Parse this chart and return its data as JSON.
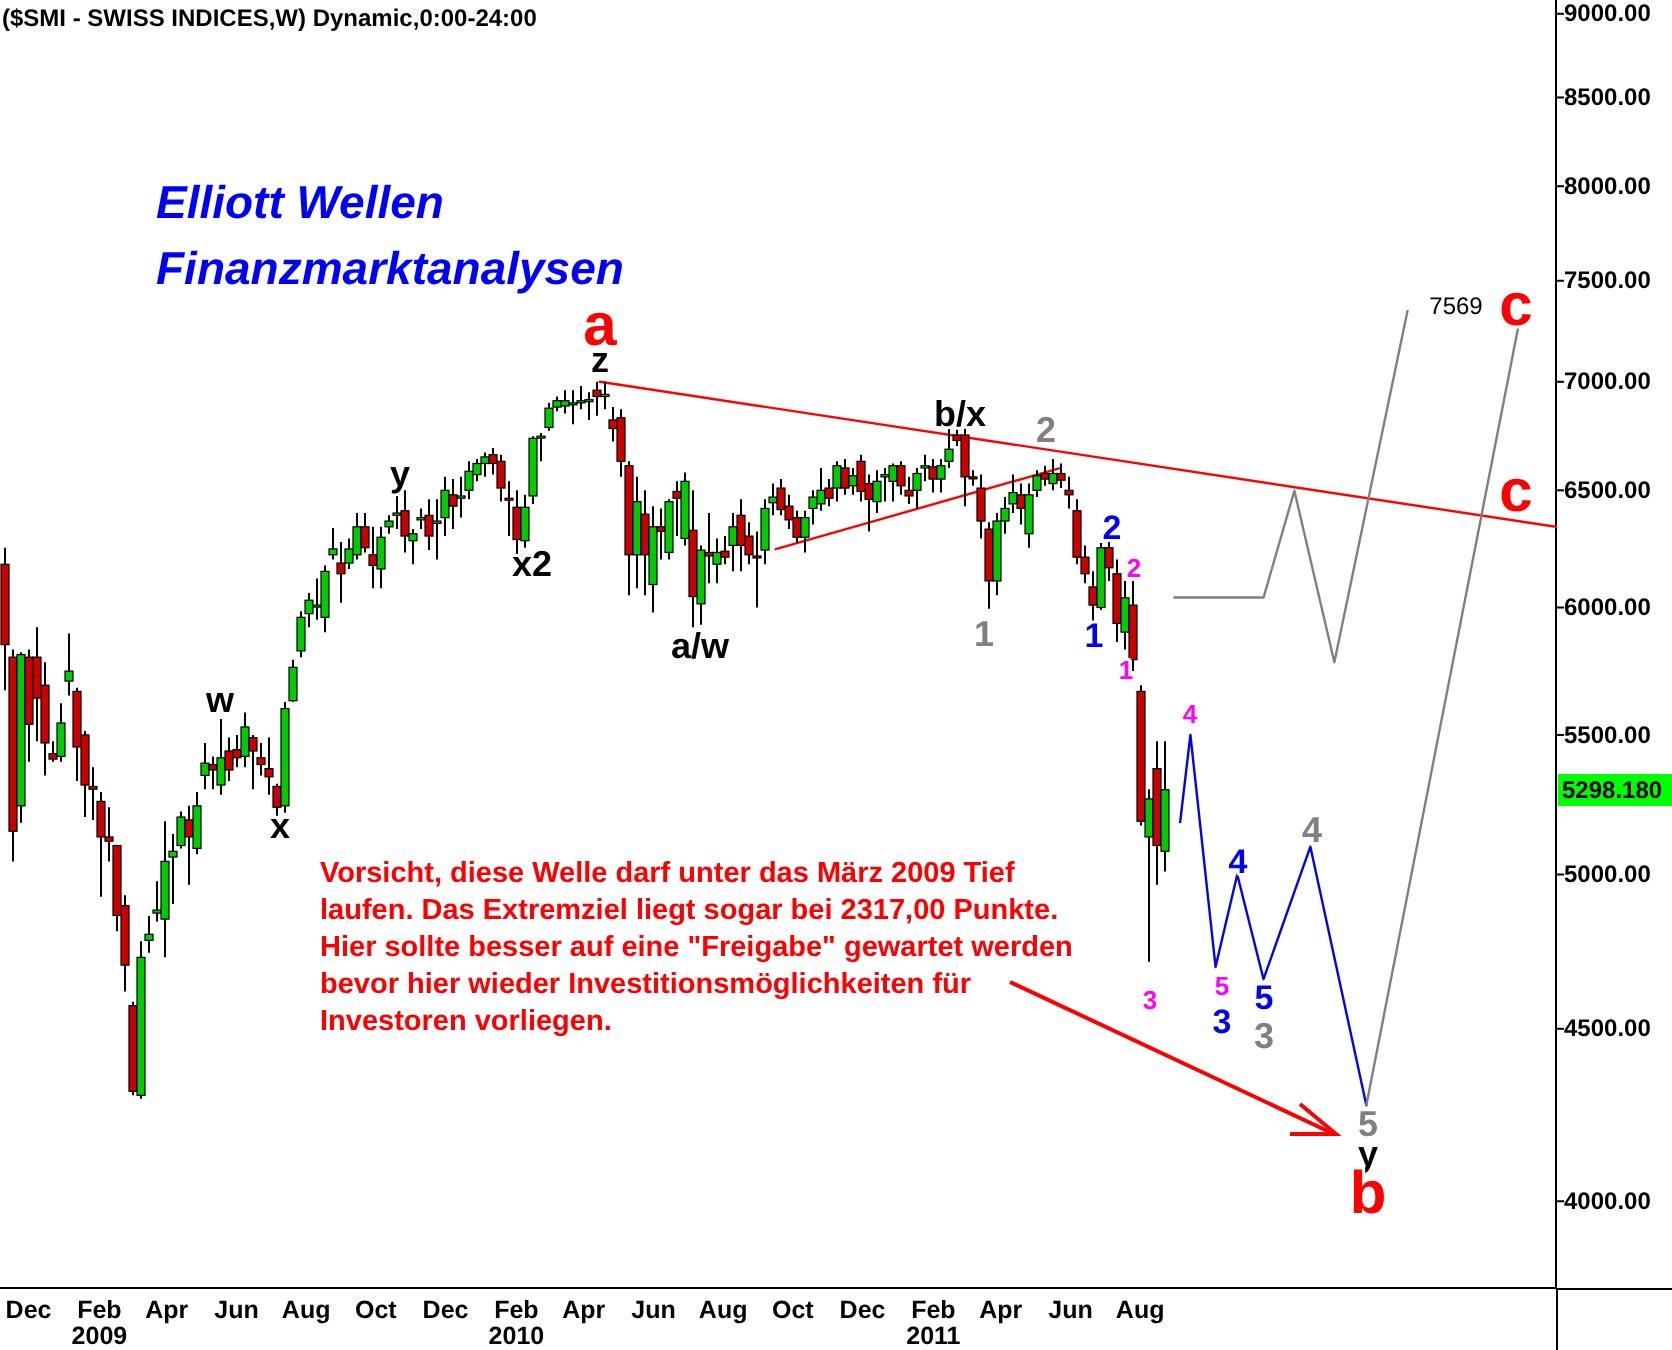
{
  "chart_data": {
    "type": "candlestick",
    "title": "($SMI - SWISS INDICES,W) Dynamic,0:00-24:00",
    "subtitle": "Elliott Wellen\nFinanzmarktanalysen",
    "log": true,
    "xlim": [
      "2008-11-06",
      "2012-07-30"
    ],
    "xticks": [
      {
        "value": "2008-12-01",
        "label": "Dec"
      },
      {
        "value": "2009-02-01",
        "label": "Feb\n2009"
      },
      {
        "value": "2009-04-01",
        "label": "Apr"
      },
      {
        "value": "2009-06-01",
        "label": "Jun"
      },
      {
        "value": "2009-08-01",
        "label": "Aug"
      },
      {
        "value": "2009-10-01",
        "label": "Oct"
      },
      {
        "value": "2009-12-01",
        "label": "Dec"
      },
      {
        "value": "2010-02-01",
        "label": "Feb\n2010"
      },
      {
        "value": "2010-04-01",
        "label": "Apr"
      },
      {
        "value": "2010-06-01",
        "label": "Jun"
      },
      {
        "value": "2010-08-01",
        "label": "Aug"
      },
      {
        "value": "2010-10-01",
        "label": "Oct"
      },
      {
        "value": "2010-12-01",
        "label": "Dec"
      },
      {
        "value": "2011-02-01",
        "label": "Feb\n2011"
      },
      {
        "value": "2011-04-01",
        "label": "Apr"
      },
      {
        "value": "2011-06-01",
        "label": "Jun"
      },
      {
        "value": "2011-08-01",
        "label": "Aug"
      }
    ],
    "ylim": [
      3770,
      9085
    ],
    "yticks": [
      {
        "value": 4000,
        "label": "4000.00"
      },
      {
        "value": 4500,
        "label": "4500.00"
      },
      {
        "value": 5000,
        "label": "5000.00"
      },
      {
        "value": 5500,
        "label": "5500.00"
      },
      {
        "value": 6000,
        "label": "6000.00"
      },
      {
        "value": 6500,
        "label": "6500.00"
      },
      {
        "value": 7000,
        "label": "7000.00"
      },
      {
        "value": 7500,
        "label": "7500.00"
      },
      {
        "value": 8000,
        "label": "8000.00"
      },
      {
        "value": 8500,
        "label": "8500.00"
      },
      {
        "value": 9000,
        "label": "9000.00"
      }
    ],
    "x": [
      "2008-11-10",
      "2008-11-17",
      "2008-11-24",
      "2008-12-01",
      "2008-12-08",
      "2008-12-15",
      "2008-12-22",
      "2008-12-29",
      "2009-01-05",
      "2009-01-12",
      "2009-01-19",
      "2009-01-26",
      "2009-02-02",
      "2009-02-09",
      "2009-02-16",
      "2009-02-23",
      "2009-03-02",
      "2009-03-09",
      "2009-03-16",
      "2009-03-23",
      "2009-03-30",
      "2009-04-06",
      "2009-04-13",
      "2009-04-20",
      "2009-04-27",
      "2009-05-04",
      "2009-05-11",
      "2009-05-18",
      "2009-05-25",
      "2009-06-01",
      "2009-06-08",
      "2009-06-15",
      "2009-06-22",
      "2009-06-29",
      "2009-07-06",
      "2009-07-13",
      "2009-07-20",
      "2009-07-27",
      "2009-08-03",
      "2009-08-10",
      "2009-08-17",
      "2009-08-24",
      "2009-08-31",
      "2009-09-07",
      "2009-09-14",
      "2009-09-21",
      "2009-09-28",
      "2009-10-05",
      "2009-10-12",
      "2009-10-19",
      "2009-10-26",
      "2009-11-02",
      "2009-11-09",
      "2009-11-16",
      "2009-11-23",
      "2009-11-30",
      "2009-12-07",
      "2009-12-14",
      "2009-12-21",
      "2009-12-28",
      "2010-01-04",
      "2010-01-11",
      "2010-01-18",
      "2010-01-25",
      "2010-02-01",
      "2010-02-08",
      "2010-02-15",
      "2010-02-22",
      "2010-03-01",
      "2010-03-08",
      "2010-03-15",
      "2010-03-22",
      "2010-03-29",
      "2010-04-05",
      "2010-04-12",
      "2010-04-19",
      "2010-04-26",
      "2010-05-03",
      "2010-05-10",
      "2010-05-17",
      "2010-05-24",
      "2010-05-31",
      "2010-06-07",
      "2010-06-14",
      "2010-06-21",
      "2010-06-28",
      "2010-07-05",
      "2010-07-12",
      "2010-07-19",
      "2010-07-26",
      "2010-08-02",
      "2010-08-09",
      "2010-08-16",
      "2010-08-23",
      "2010-08-30",
      "2010-09-06",
      "2010-09-13",
      "2010-09-20",
      "2010-09-27",
      "2010-10-04",
      "2010-10-11",
      "2010-10-18",
      "2010-10-25",
      "2010-11-01",
      "2010-11-08",
      "2010-11-15",
      "2010-11-22",
      "2010-11-29",
      "2010-12-06",
      "2010-12-13",
      "2010-12-20",
      "2010-12-27",
      "2011-01-03",
      "2011-01-10",
      "2011-01-17",
      "2011-01-24",
      "2011-01-31",
      "2011-02-07",
      "2011-02-14",
      "2011-02-21",
      "2011-02-28",
      "2011-03-07",
      "2011-03-14",
      "2011-03-21",
      "2011-03-28",
      "2011-04-04",
      "2011-04-11",
      "2011-04-18",
      "2011-04-25",
      "2011-05-02",
      "2011-05-09",
      "2011-05-16",
      "2011-05-23",
      "2011-05-30",
      "2011-06-06",
      "2011-06-13",
      "2011-06-20",
      "2011-06-27",
      "2011-07-04",
      "2011-07-11",
      "2011-07-18",
      "2011-07-25",
      "2011-08-01",
      "2011-08-08",
      "2011-08-15",
      "2011-08-22"
    ],
    "ohlc": [
      [
        6180,
        6250,
        5670,
        5850
      ],
      [
        5800,
        5830,
        5045,
        5150
      ],
      [
        5240,
        5820,
        5180,
        5810
      ],
      [
        5800,
        5830,
        5400,
        5540
      ],
      [
        5800,
        5920,
        5476,
        5640
      ],
      [
        5690,
        5780,
        5350,
        5470
      ],
      [
        5430,
        5476,
        5400,
        5410
      ],
      [
        5420,
        5620,
        5400,
        5545
      ],
      [
        5706,
        5895,
        5650,
        5745
      ],
      [
        5666,
        5680,
        5330,
        5455
      ],
      [
        5500,
        5515,
        5200,
        5315
      ],
      [
        5310,
        5380,
        5190,
        5300
      ],
      [
        5256,
        5290,
        4925,
        5130
      ],
      [
        5130,
        5235,
        5045,
        5115
      ],
      [
        5100,
        5100,
        4810,
        4862
      ],
      [
        4895,
        4930,
        4616,
        4700
      ],
      [
        4572,
        4584,
        4300,
        4312
      ],
      [
        4300,
        4777,
        4290,
        4725
      ],
      [
        4780,
        4860,
        4740,
        4800
      ],
      [
        4870,
        4977,
        4842,
        4880
      ],
      [
        4850,
        5185,
        4725,
        5045
      ],
      [
        5060,
        5140,
        4900,
        5080
      ],
      [
        5100,
        5220,
        5090,
        5200
      ],
      [
        5190,
        5240,
        4965,
        5130
      ],
      [
        5090,
        5290,
        5070,
        5240
      ],
      [
        5350,
        5470,
        5300,
        5395
      ],
      [
        5390,
        5420,
        5300,
        5370
      ],
      [
        5315,
        5560,
        5280,
        5415
      ],
      [
        5440,
        5490,
        5330,
        5370
      ],
      [
        5445,
        5500,
        5380,
        5415
      ],
      [
        5420,
        5585,
        5380,
        5530
      ],
      [
        5490,
        5500,
        5300,
        5440
      ],
      [
        5415,
        5470,
        5350,
        5390
      ],
      [
        5375,
        5490,
        5280,
        5345
      ],
      [
        5310,
        5320,
        5205,
        5235
      ],
      [
        5240,
        5625,
        5215,
        5600
      ],
      [
        5630,
        5790,
        5625,
        5760
      ],
      [
        5825,
        5985,
        5800,
        5960
      ],
      [
        5975,
        6060,
        5920,
        6030
      ],
      [
        6005,
        6120,
        5950,
        6010
      ],
      [
        5960,
        6175,
        5900,
        6150
      ],
      [
        6220,
        6335,
        6200,
        6245
      ],
      [
        6185,
        6275,
        6020,
        6140
      ],
      [
        6185,
        6290,
        6160,
        6245
      ],
      [
        6220,
        6400,
        6200,
        6340
      ],
      [
        6340,
        6400,
        6230,
        6250
      ],
      [
        6220,
        6340,
        6080,
        6175
      ],
      [
        6160,
        6340,
        6080,
        6295
      ],
      [
        6340,
        6390,
        6310,
        6365
      ],
      [
        6390,
        6530,
        6330,
        6400
      ],
      [
        6410,
        6500,
        6230,
        6300
      ],
      [
        6280,
        6330,
        6180,
        6310
      ],
      [
        6370,
        6420,
        6330,
        6380
      ],
      [
        6390,
        6460,
        6240,
        6300
      ],
      [
        6355,
        6460,
        6200,
        6365
      ],
      [
        6380,
        6560,
        6300,
        6500
      ],
      [
        6480,
        6550,
        6330,
        6430
      ],
      [
        6465,
        6560,
        6380,
        6475
      ],
      [
        6500,
        6630,
        6460,
        6585
      ],
      [
        6570,
        6640,
        6540,
        6620
      ],
      [
        6620,
        6670,
        6560,
        6650
      ],
      [
        6660,
        6690,
        6570,
        6620
      ],
      [
        6630,
        6660,
        6450,
        6510
      ],
      [
        6465,
        6540,
        6300,
        6460
      ],
      [
        6425,
        6500,
        6220,
        6285
      ],
      [
        6280,
        6480,
        6250,
        6425
      ],
      [
        6475,
        6745,
        6440,
        6735
      ],
      [
        6740,
        6760,
        6630,
        6745
      ],
      [
        6785,
        6900,
        6770,
        6875
      ],
      [
        6880,
        6930,
        6860,
        6910
      ],
      [
        6885,
        6960,
        6850,
        6910
      ],
      [
        6895,
        6960,
        6800,
        6900
      ],
      [
        6900,
        6980,
        6870,
        6910
      ],
      [
        6910,
        6950,
        6820,
        6915
      ],
      [
        6960,
        7000,
        6840,
        6930
      ],
      [
        6930,
        7000,
        6870,
        6940
      ],
      [
        6820,
        6880,
        6720,
        6780
      ],
      [
        6830,
        6870,
        6560,
        6630
      ],
      [
        6610,
        6630,
        6050,
        6220
      ],
      [
        6220,
        6560,
        6080,
        6450
      ],
      [
        6395,
        6500,
        6050,
        6220
      ],
      [
        6095,
        6430,
        5980,
        6340
      ],
      [
        6340,
        6420,
        6200,
        6320
      ],
      [
        6230,
        6460,
        6200,
        6450
      ],
      [
        6495,
        6540,
        6300,
        6465
      ],
      [
        6290,
        6580,
        6260,
        6540
      ],
      [
        6325,
        6500,
        5920,
        6045
      ],
      [
        6015,
        6260,
        5930,
        6240
      ],
      [
        6230,
        6400,
        6100,
        6215
      ],
      [
        6180,
        6290,
        6100,
        6230
      ],
      [
        6235,
        6300,
        6180,
        6210
      ],
      [
        6260,
        6400,
        6150,
        6340
      ],
      [
        6390,
        6460,
        6150,
        6260
      ],
      [
        6300,
        6360,
        6180,
        6220
      ],
      [
        6215,
        6320,
        6000,
        6210
      ],
      [
        6240,
        6460,
        6180,
        6420
      ],
      [
        6445,
        6530,
        6390,
        6470
      ],
      [
        6510,
        6550,
        6390,
        6415
      ],
      [
        6430,
        6480,
        6330,
        6370
      ],
      [
        6380,
        6410,
        6270,
        6295
      ],
      [
        6295,
        6410,
        6230,
        6380
      ],
      [
        6420,
        6500,
        6350,
        6470
      ],
      [
        6440,
        6600,
        6410,
        6500
      ],
      [
        6510,
        6550,
        6430,
        6465
      ],
      [
        6510,
        6630,
        6450,
        6610
      ],
      [
        6600,
        6640,
        6480,
        6510
      ],
      [
        6520,
        6600,
        6480,
        6565
      ],
      [
        6630,
        6660,
        6450,
        6495
      ],
      [
        6530,
        6570,
        6320,
        6460
      ],
      [
        6450,
        6590,
        6400,
        6540
      ],
      [
        6560,
        6600,
        6450,
        6570
      ],
      [
        6540,
        6620,
        6450,
        6610
      ],
      [
        6610,
        6630,
        6480,
        6520
      ],
      [
        6500,
        6560,
        6440,
        6475
      ],
      [
        6500,
        6600,
        6420,
        6575
      ],
      [
        6600,
        6660,
        6540,
        6610
      ],
      [
        6605,
        6640,
        6490,
        6550
      ],
      [
        6550,
        6640,
        6490,
        6610
      ],
      [
        6630,
        6790,
        6600,
        6685
      ],
      [
        6750,
        6790,
        6700,
        6725
      ],
      [
        6750,
        6780,
        6430,
        6560
      ],
      [
        6560,
        6590,
        6520,
        6555
      ],
      [
        6510,
        6570,
        6290,
        6365
      ],
      [
        6330,
        6360,
        5995,
        6110
      ],
      [
        6110,
        6400,
        6050,
        6365
      ],
      [
        6365,
        6470,
        6310,
        6420
      ],
      [
        6440,
        6570,
        6400,
        6490
      ],
      [
        6480,
        6530,
        6350,
        6420
      ],
      [
        6310,
        6530,
        6250,
        6480
      ],
      [
        6500,
        6590,
        6470,
        6565
      ],
      [
        6575,
        6610,
        6520,
        6550
      ],
      [
        6530,
        6640,
        6500,
        6575
      ],
      [
        6575,
        6620,
        6510,
        6545
      ],
      [
        6500,
        6560,
        6420,
        6480
      ],
      [
        6410,
        6460,
        6180,
        6210
      ],
      [
        6210,
        6260,
        6100,
        6140
      ],
      [
        6085,
        6150,
        5945,
        6010
      ],
      [
        6000,
        6270,
        5990,
        6250
      ],
      [
        6250,
        6280,
        6110,
        6165
      ],
      [
        6140,
        6200,
        5860,
        5935
      ],
      [
        5900,
        6110,
        5830,
        6040
      ],
      [
        6010,
        6110,
        5745,
        5790
      ],
      [
        5666,
        5690,
        5170,
        5185
      ],
      [
        5130,
        5300,
        4711,
        5265
      ],
      [
        5375,
        5476,
        4965,
        5100
      ],
      [
        5080,
        5476,
        5010,
        5298.18
      ]
    ],
    "series": [
      {
        "type": "line",
        "color": "#ff0000",
        "x": [
          "2010-04-15",
          "2012-07-30"
        ],
        "values": [
          7000,
          6340
        ]
      },
      {
        "type": "line",
        "color": "#ff0000",
        "x": [
          "2010-09-16",
          "2011-05-22"
        ],
        "values": [
          6244,
          6598
        ]
      },
      {
        "type": "line",
        "color": "#0000ff",
        "x": [
          "2011-09-05",
          "2011-09-14",
          "2011-10-06",
          "2011-10-25",
          "2011-11-17",
          "2011-12-28",
          "2012-02-15"
        ],
        "values": [
          5182,
          5500,
          4694,
          5000,
          4655,
          5096,
          4271
        ]
      },
      {
        "type": "line",
        "color": "#808080",
        "x": [
          "2012-02-15",
          "2012-06-27"
        ],
        "values": [
          4271,
          7268
        ]
      },
      {
        "type": "line",
        "color": "#808080",
        "x": [
          "2011-08-31",
          "2011-11-17",
          "2011-12-14",
          "2012-01-18",
          "2012-03-22"
        ],
        "values": [
          6041,
          6041,
          6498,
          5780,
          7347
        ]
      }
    ],
    "annotations": [
      "Vorsicht, diese Welle darf unter das März 2009 Tief\nlaufen. Das Extremziel liegt sogar bei 2317,00 Punkte.\nHier sollte besser auf eine \"Freigabe\" gewartet werden\nbevor hier wieder Investitionsmöglichkeiten für\nInvestoren vorliegen.",
      "a",
      "z",
      "y",
      "x2",
      "w",
      "x",
      "a/w",
      "b/x",
      "2",
      "1",
      "1",
      "2",
      "2",
      "1",
      "3",
      "4",
      "5",
      "3",
      "4",
      "5",
      "3",
      "4",
      "5",
      "y",
      "b",
      "c",
      "c",
      "7569",
      "5298.180"
    ]
  }
}
